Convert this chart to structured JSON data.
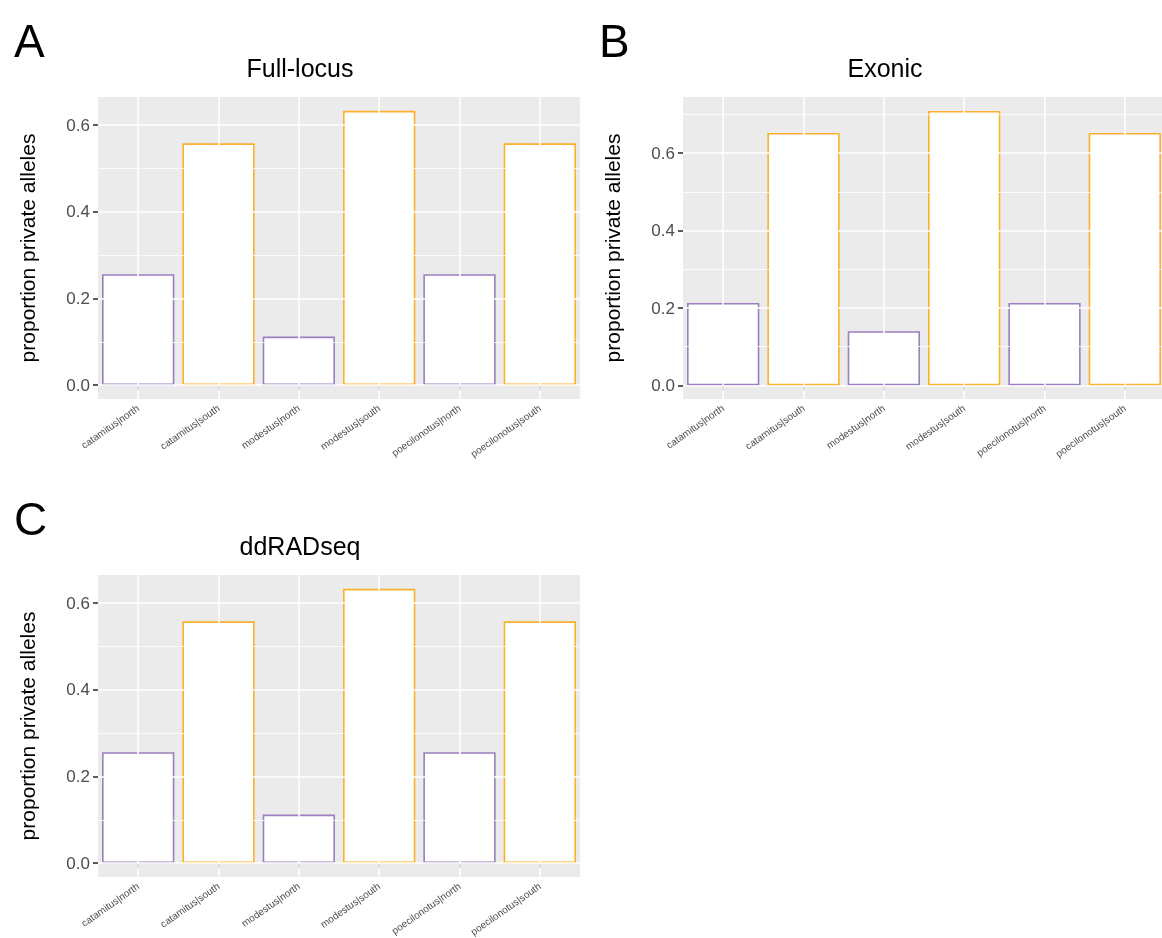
{
  "chart_data": [
    {
      "type": "bar",
      "title": "Full-locus",
      "ylabel": "proportion private alleles",
      "annotations": [
        "A"
      ],
      "categories": [
        "catamitus|north",
        "catamitus|south",
        "modestus|north",
        "modestus|south",
        "poecilonotus|north",
        "poecilonotus|south"
      ],
      "values": [
        0.256,
        0.558,
        0.112,
        0.633,
        0.256,
        0.558
      ],
      "colors": [
        "#9b7fc0",
        "#fbb12b",
        "#9b7fc0",
        "#fbb12b",
        "#9b7fc0",
        "#fbb12b"
      ],
      "ylim": [
        -0.032,
        0.665
      ],
      "yticks": [
        {
          "value": 0,
          "label": "0.0"
        },
        {
          "value": 0.1,
          "label": null
        },
        {
          "value": 0.2,
          "label": "0.2"
        },
        {
          "value": 0.3,
          "label": null
        },
        {
          "value": 0.4,
          "label": "0.4"
        },
        {
          "value": 0.5,
          "label": null
        },
        {
          "value": 0.6,
          "label": "0.6"
        }
      ],
      "grid": true
    },
    {
      "type": "bar",
      "title": "Exonic",
      "ylabel": "proportion private alleles",
      "annotations": [
        "B"
      ],
      "categories": [
        "catamitus|north",
        "catamitus|south",
        "modestus|north",
        "modestus|south",
        "poecilonotus|north",
        "poecilonotus|south"
      ],
      "values": [
        0.213,
        0.652,
        0.14,
        0.709,
        0.213,
        0.652
      ],
      "colors": [
        "#9b7fc0",
        "#fbb12b",
        "#9b7fc0",
        "#fbb12b",
        "#9b7fc0",
        "#fbb12b"
      ],
      "ylim": [
        -0.035,
        0.745
      ],
      "yticks": [
        {
          "value": 0,
          "label": "0.0"
        },
        {
          "value": 0.1,
          "label": null
        },
        {
          "value": 0.2,
          "label": "0.2"
        },
        {
          "value": 0.3,
          "label": null
        },
        {
          "value": 0.4,
          "label": "0.4"
        },
        {
          "value": 0.5,
          "label": null
        },
        {
          "value": 0.6,
          "label": "0.6"
        },
        {
          "value": 0.7,
          "label": null
        }
      ],
      "grid": true
    },
    {
      "type": "bar",
      "title": "ddRADseq",
      "ylabel": "proportion private alleles",
      "annotations": [
        "C"
      ],
      "categories": [
        "catamitus|north",
        "catamitus|south",
        "modestus|north",
        "modestus|south",
        "poecilonotus|north",
        "poecilonotus|south"
      ],
      "values": [
        0.256,
        0.558,
        0.112,
        0.633,
        0.256,
        0.558
      ],
      "colors": [
        "#9b7fc0",
        "#fbb12b",
        "#9b7fc0",
        "#fbb12b",
        "#9b7fc0",
        "#fbb12b"
      ],
      "ylim": [
        -0.032,
        0.665
      ],
      "yticks": [
        {
          "value": 0,
          "label": "0.0"
        },
        {
          "value": 0.1,
          "label": null
        },
        {
          "value": 0.2,
          "label": "0.2"
        },
        {
          "value": 0.3,
          "label": null
        },
        {
          "value": 0.4,
          "label": "0.4"
        },
        {
          "value": 0.5,
          "label": null
        },
        {
          "value": 0.6,
          "label": "0.6"
        }
      ],
      "grid": true
    }
  ]
}
